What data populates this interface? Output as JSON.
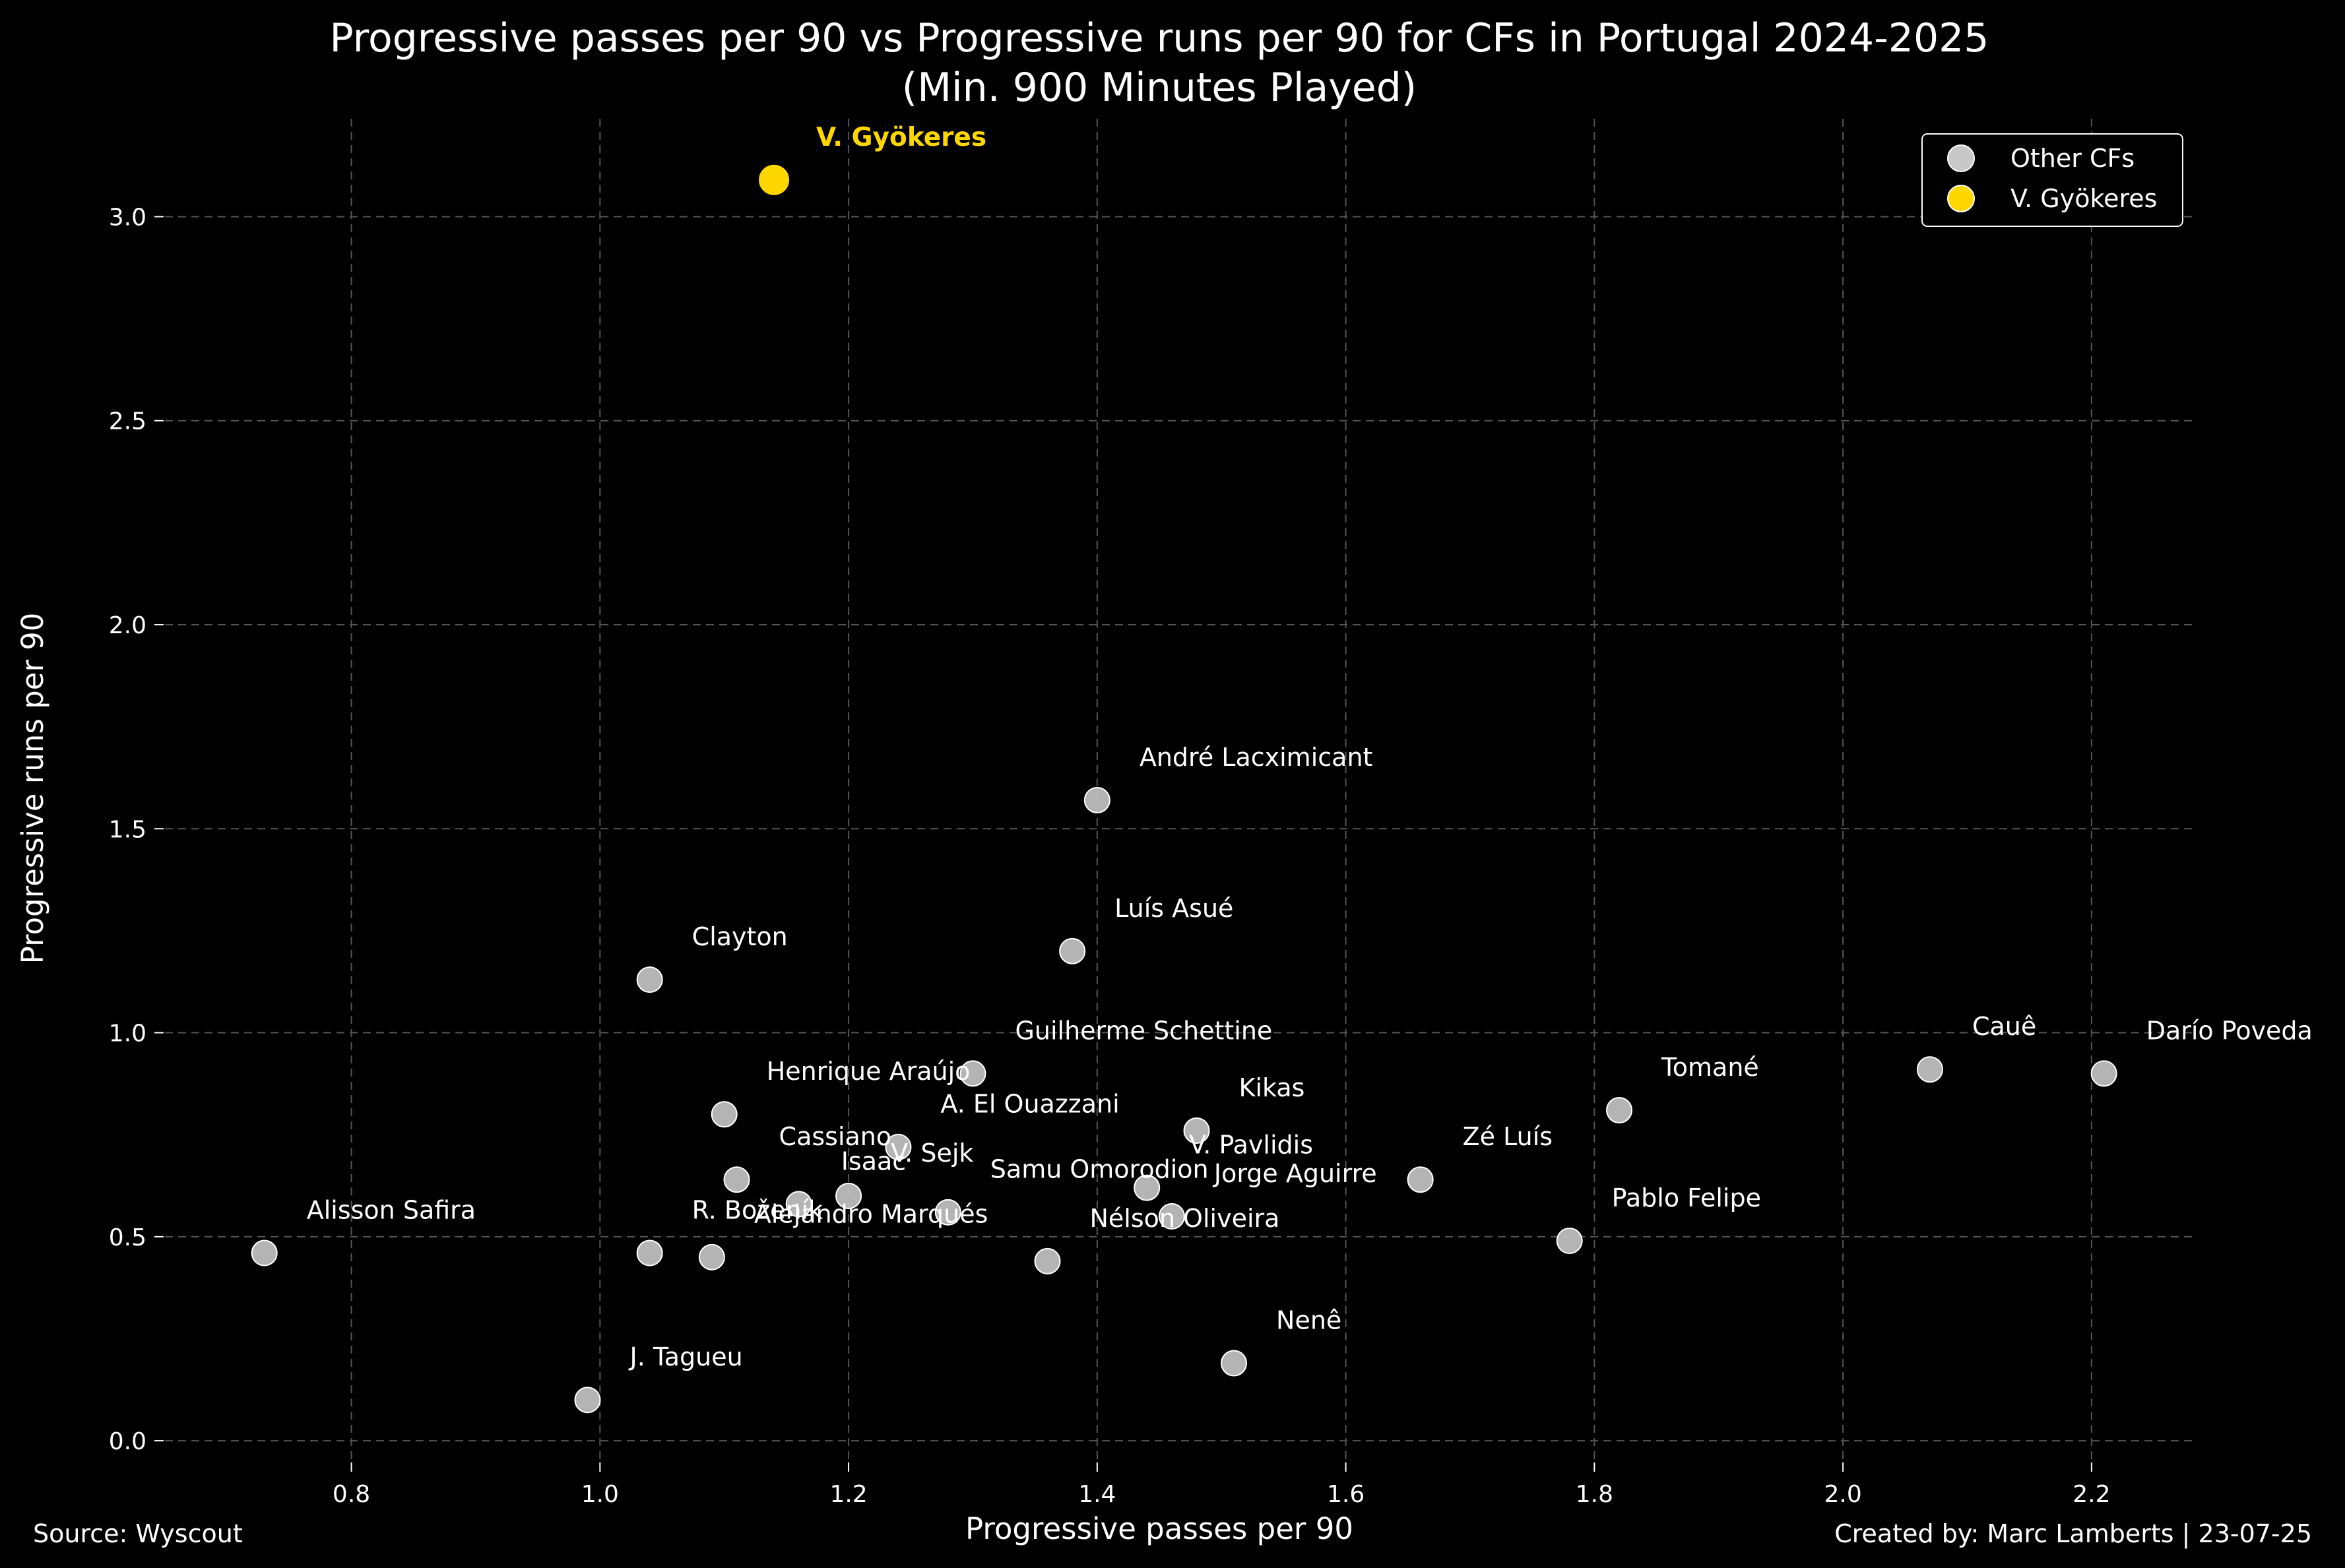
{
  "title": "Progressive passes per 90 vs Progressive runs per 90 for CFs in Portugal 2024-2025",
  "subtitle": "(Min. 900 Minutes Played)",
  "source": "Source: Wyscout",
  "credit": "Created by: Marc Lamberts | 23-07-25",
  "colors": {
    "background": "#000000",
    "other": "#C8C8C8",
    "highlight": "#FFD700"
  },
  "chart_data": {
    "type": "scatter",
    "xlabel": "Progressive passes per 90",
    "ylabel": "Progressive runs per 90",
    "xlim": [
      0.65,
      2.285
    ],
    "ylim": [
      -0.05,
      3.24
    ],
    "xticks": [
      0.8,
      1.0,
      1.2,
      1.4,
      1.6,
      1.8,
      2.0,
      2.2
    ],
    "yticks": [
      0.0,
      0.5,
      1.0,
      1.5,
      2.0,
      2.5,
      3.0
    ],
    "xtick_labels": [
      "0.8",
      "1.0",
      "1.2",
      "1.4",
      "1.6",
      "1.8",
      "2.0",
      "2.2"
    ],
    "ytick_labels": [
      "0.0",
      "0.5",
      "1.0",
      "1.5",
      "2.0",
      "2.5",
      "3.0"
    ],
    "grid": true,
    "legend_position": "top-right",
    "legend": [
      "Other CFs",
      "V. Gyökeres"
    ],
    "series": [
      {
        "name": "Other CFs",
        "color": "#C8C8C8",
        "points": [
          {
            "x": 1.4,
            "y": 1.57,
            "label": "André Lacximicant"
          },
          {
            "x": 1.38,
            "y": 1.2,
            "label": "Luís Asué"
          },
          {
            "x": 1.04,
            "y": 1.13,
            "label": "Clayton"
          },
          {
            "x": 1.3,
            "y": 0.9,
            "label": "Guilherme Schettine"
          },
          {
            "x": 1.1,
            "y": 0.8,
            "label": "Henrique Araújo"
          },
          {
            "x": 1.48,
            "y": 0.76,
            "label": "Kikas"
          },
          {
            "x": 1.24,
            "y": 0.72,
            "label": "A. El Ouazzani"
          },
          {
            "x": 1.11,
            "y": 0.64,
            "label": "Cassiano"
          },
          {
            "x": 1.2,
            "y": 0.6,
            "label": "V. Sejk"
          },
          {
            "x": 1.16,
            "y": 0.58,
            "label": "Isaac"
          },
          {
            "x": 1.44,
            "y": 0.62,
            "label": "V. Pavlidis"
          },
          {
            "x": 1.28,
            "y": 0.56,
            "label": "Samu Omorodion"
          },
          {
            "x": 1.46,
            "y": 0.55,
            "label": "Jorge Aguirre"
          },
          {
            "x": 1.04,
            "y": 0.46,
            "label": "R. Boženík"
          },
          {
            "x": 1.09,
            "y": 0.45,
            "label": "Alejandro Marqués"
          },
          {
            "x": 1.36,
            "y": 0.44,
            "label": "Nélson Oliveira"
          },
          {
            "x": 1.66,
            "y": 0.64,
            "label": "Zé Luís"
          },
          {
            "x": 1.82,
            "y": 0.81,
            "label": "Tomané"
          },
          {
            "x": 1.78,
            "y": 0.49,
            "label": "Pablo Felipe"
          },
          {
            "x": 2.07,
            "y": 0.91,
            "label": "Cauê"
          },
          {
            "x": 2.21,
            "y": 0.9,
            "label": "Darío Poveda"
          },
          {
            "x": 0.73,
            "y": 0.46,
            "label": "Alisson Safira"
          },
          {
            "x": 0.99,
            "y": 0.1,
            "label": "J. Tagueu"
          },
          {
            "x": 1.51,
            "y": 0.19,
            "label": "Nenê"
          }
        ]
      },
      {
        "name": "V. Gyökeres",
        "color": "#FFD700",
        "points": [
          {
            "x": 1.14,
            "y": 3.09,
            "label": "V. Gyökeres"
          }
        ]
      }
    ]
  }
}
